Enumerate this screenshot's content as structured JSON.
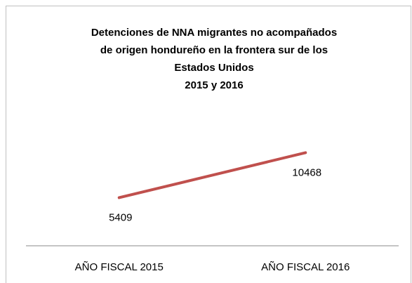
{
  "chart_data": {
    "type": "line",
    "title": [
      "Detenciones de NNA migrantes no acompañados",
      "de origen hondureño en la frontera sur de los",
      "Estados Unidos",
      "2015 y 2016"
    ],
    "categories": [
      "AÑO FISCAL 2015",
      "AÑO FISCAL 2016"
    ],
    "values": [
      5409,
      10468
    ],
    "color": "#c0504d",
    "ylim": [
      0,
      12000
    ]
  }
}
